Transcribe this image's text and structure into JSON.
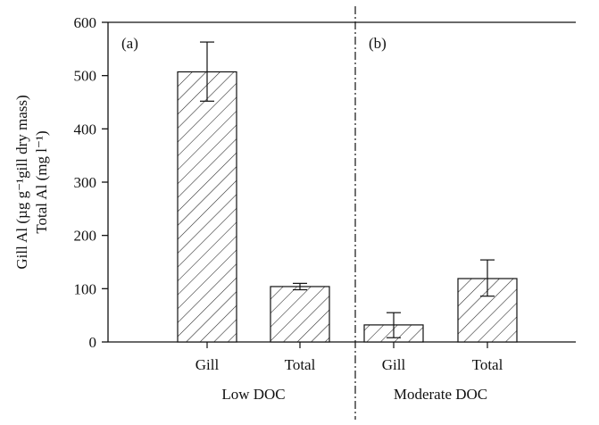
{
  "chart_data": {
    "type": "bar",
    "ylabel_line1": "Gill Al (µg g⁻¹gill dry mass)",
    "ylabel_line2": "Total Al (mg l⁻¹)",
    "ylim": [
      0,
      600
    ],
    "yticks": [
      0,
      100,
      200,
      300,
      400,
      500,
      600
    ],
    "grid": false,
    "panels": [
      {
        "label": "(a)",
        "group": "Low DOC",
        "bars": [
          {
            "category": "Gill",
            "value": 507,
            "err_low": 452,
            "err_high": 563
          },
          {
            "category": "Total",
            "value": 104,
            "err_low": 98,
            "err_high": 110
          }
        ]
      },
      {
        "label": "(b)",
        "group": "Moderate DOC",
        "bars": [
          {
            "category": "Gill",
            "value": 32,
            "err_low": 8,
            "err_high": 55
          },
          {
            "category": "Total",
            "value": 119,
            "err_low": 86,
            "err_high": 154
          }
        ]
      }
    ],
    "bar_fill": "hatched",
    "colors": {
      "axis": "#111111",
      "hatch": "#222222",
      "hatch_highlight": "#b8b8b8",
      "bar_face": "#ffffff"
    }
  }
}
